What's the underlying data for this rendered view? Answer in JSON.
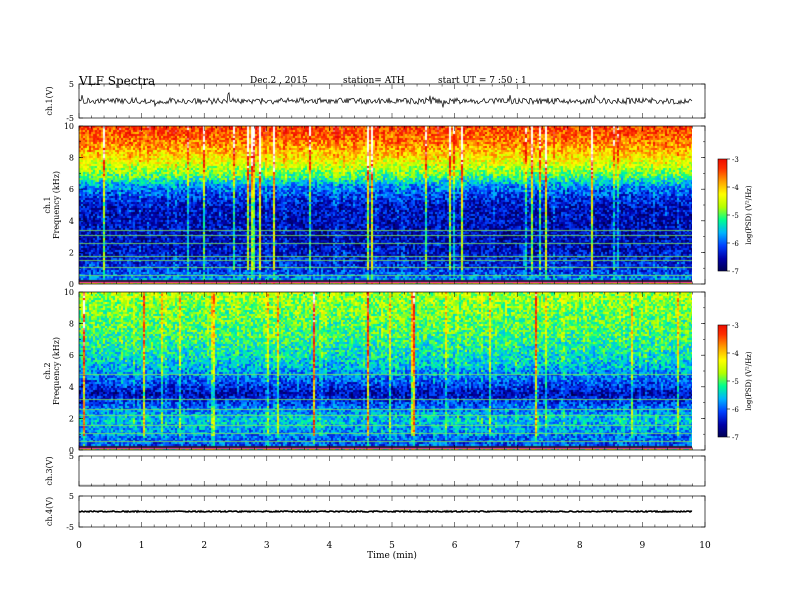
{
  "header": {
    "title": "VLF  Spectra",
    "date": "Dec.2  , 2015",
    "station": "station= ATH",
    "start": "start  UT  =    7  :50 : 1"
  },
  "chart_data": {
    "type": "heatmap",
    "title": "VLF  Spectra",
    "xlabel": "Time  (min)",
    "xlim": [
      0,
      10
    ],
    "x_ticks": [
      "0",
      "1",
      "2",
      "3",
      "4",
      "5",
      "6",
      "7",
      "8",
      "9",
      "10"
    ],
    "data_end_min": 9.8,
    "panels": [
      {
        "id": "wave-ch1",
        "kind": "waveform",
        "ylabel": "ch.1(V)",
        "ylim": [
          -5,
          5
        ],
        "y_ticks": [
          "5",
          "-5"
        ],
        "amplitude_v": 0.9,
        "color": "#000000"
      },
      {
        "id": "spec-ch1",
        "kind": "spectrogram",
        "ylabel": [
          "ch.1",
          "Frequency  (kHz)"
        ],
        "ylim": [
          0,
          10
        ],
        "y_ticks": [
          "0",
          "2",
          "4",
          "6",
          "8",
          "10"
        ],
        "color_range": [
          -7,
          -3
        ],
        "colorbar_label": "log(PSD) (V²/Hz)",
        "colorbar_ticks": [
          "-3",
          "-4",
          "-5",
          "-6",
          "-7"
        ],
        "band_profile": [
          {
            "f": 0.0,
            "level": -4.2
          },
          {
            "f": 0.4,
            "level": -6.0
          },
          {
            "f": 1.0,
            "level": -6.3
          },
          {
            "f": 2.0,
            "level": -6.5
          },
          {
            "f": 3.0,
            "level": -6.6
          },
          {
            "f": 5.0,
            "level": -6.5
          },
          {
            "f": 6.2,
            "level": -6.0
          },
          {
            "f": 7.0,
            "level": -5.2
          },
          {
            "f": 8.0,
            "level": -4.6
          },
          {
            "f": 9.0,
            "level": -4.1
          },
          {
            "f": 10.0,
            "level": -3.8
          }
        ],
        "tones_khz": [
          0.2,
          0.6,
          1.1,
          1.5,
          1.8,
          2.6,
          3.1,
          3.4
        ]
      },
      {
        "id": "spec-ch2",
        "kind": "spectrogram",
        "ylabel": [
          "ch.2",
          "Frequency  (kHz)"
        ],
        "ylim": [
          0,
          10
        ],
        "y_ticks": [
          "0",
          "2",
          "4",
          "6",
          "8",
          "10"
        ],
        "color_range": [
          -7,
          -3
        ],
        "colorbar_label": "log(PSD) (V²/Hz)",
        "colorbar_ticks": [
          "-3",
          "-4",
          "-5",
          "-6",
          "-7"
        ],
        "band_profile": [
          {
            "f": 0.0,
            "level": -4.6
          },
          {
            "f": 0.4,
            "level": -6.2
          },
          {
            "f": 1.0,
            "level": -6.0
          },
          {
            "f": 2.0,
            "level": -5.7
          },
          {
            "f": 3.0,
            "level": -6.2
          },
          {
            "f": 3.6,
            "level": -6.6
          },
          {
            "f": 4.5,
            "level": -6.1
          },
          {
            "f": 5.5,
            "level": -5.7
          },
          {
            "f": 7.0,
            "level": -5.4
          },
          {
            "f": 8.5,
            "level": -5.2
          },
          {
            "f": 10.0,
            "level": -5.0
          }
        ],
        "tones_khz": [
          0.6,
          1.1,
          1.6,
          2.2,
          2.6,
          3.2,
          4.8
        ]
      },
      {
        "id": "wave-ch3",
        "kind": "waveform",
        "ylabel": "ch.3(V)",
        "ylim": [
          -5,
          5
        ],
        "y_ticks": [
          "5"
        ],
        "amplitude_v": 0,
        "color": "#000000"
      },
      {
        "id": "wave-ch4",
        "kind": "waveform",
        "ylabel": "ch.4(V)",
        "ylim": [
          -5,
          5
        ],
        "y_ticks": [
          "5",
          "-5"
        ],
        "amplitude_v": 0.2,
        "offset_v": 0.0,
        "color": "#000000"
      }
    ],
    "colormap": [
      "#000050",
      "#0000a8",
      "#0040ff",
      "#00b4ff",
      "#00ff90",
      "#b4ff00",
      "#ffff00",
      "#ffa000",
      "#ff3000",
      "#e80000",
      "#ffffff"
    ]
  }
}
